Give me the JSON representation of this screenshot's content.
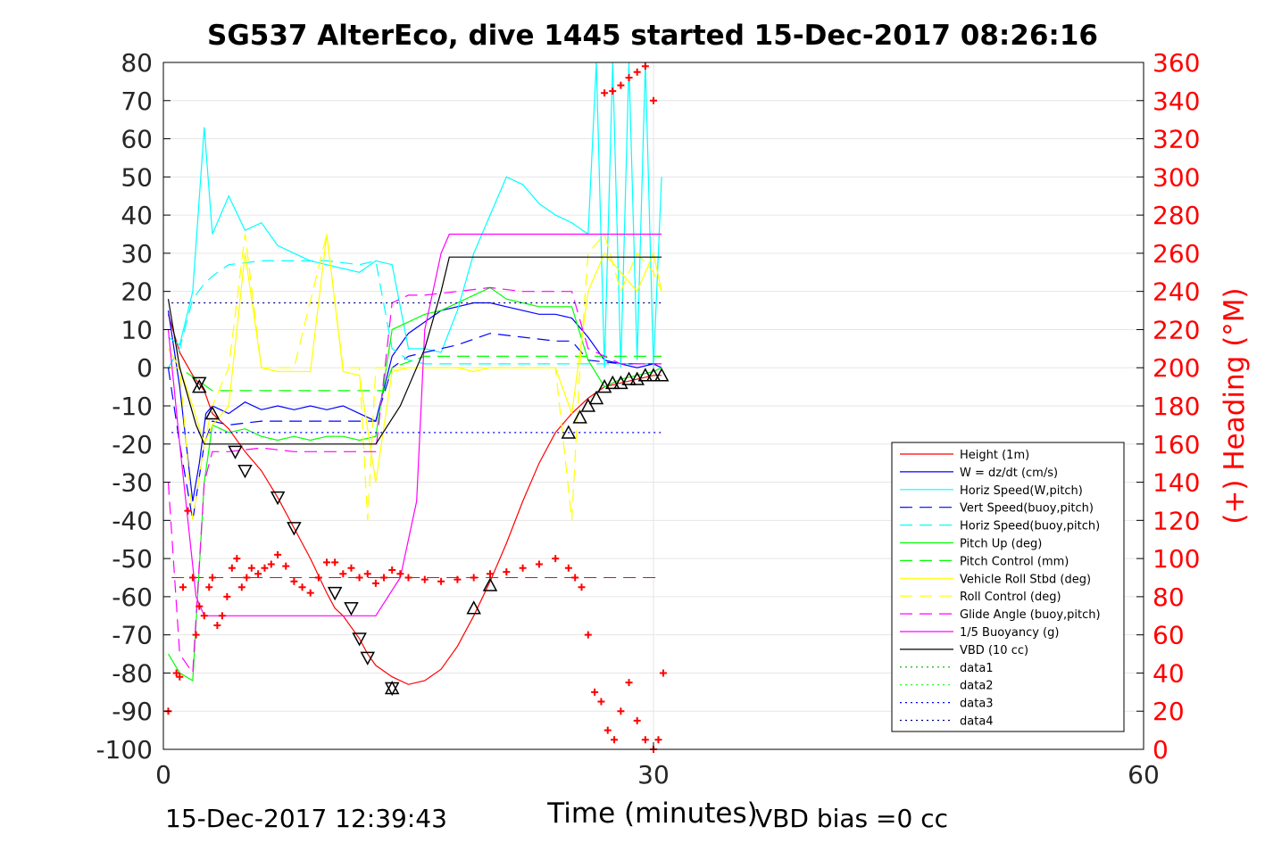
{
  "chart_data": {
    "type": "line",
    "title": "SG537 AlterEco, dive 1445 started 15-Dec-2017 08:26:16",
    "xlabel": "Time (minutes)",
    "ylabel": "",
    "y2label": "(+) Heading (°M)",
    "xlim": [
      0,
      60
    ],
    "ylim": [
      -100,
      80
    ],
    "y2lim": [
      0,
      360
    ],
    "x_ticks": [
      "0",
      "30",
      "60"
    ],
    "y_ticks": [
      "80",
      "70",
      "60",
      "50",
      "40",
      "30",
      "20",
      "10",
      "0",
      "-10",
      "-20",
      "-30",
      "-40",
      "-50",
      "-60",
      "-70",
      "-80",
      "-90",
      "-100"
    ],
    "y2_ticks": [
      "360",
      "340",
      "320",
      "300",
      "280",
      "260",
      "240",
      "220",
      "200",
      "180",
      "160",
      "140",
      "120",
      "100",
      "80",
      "60",
      "40",
      "20",
      "0"
    ],
    "grid": true,
    "legend_position": "lower-right",
    "footer_left": "15-Dec-2017 12:39:43",
    "footer_right": "VBD bias =0 cc",
    "colors": {
      "red": "#ff0000",
      "blue": "#0000ff",
      "cyan": "#00ffff",
      "green": "#00ff00",
      "yellow": "#ffff00",
      "magenta": "#ff00ff",
      "black": "#000000",
      "darkblue": "#000080",
      "darkgreen": "#00aa00"
    },
    "series": [
      {
        "name": "Height (1m)",
        "color": "#ff0000",
        "style": "solid",
        "x": [
          0.3,
          1.0,
          1.8,
          2.5,
          3.0,
          4.0,
          5.0,
          6.0,
          7.0,
          8.0,
          9.0,
          10.0,
          10.5,
          11.0,
          12.0,
          12.5,
          13.0,
          14.0,
          15.0,
          16.0,
          17.0,
          18.0,
          19.0,
          20.0,
          21.0,
          22.0,
          23.0,
          24.0,
          25.0,
          26.0,
          27.0,
          28.0,
          29.0,
          30.0,
          30.5
        ],
        "y": [
          14,
          4,
          -2,
          -6,
          -12,
          -16,
          -22,
          -27,
          -34,
          -42,
          -50,
          -59,
          -63,
          -65,
          -71,
          -75,
          -78,
          -81,
          -83,
          -82,
          -79,
          -73,
          -65,
          -56,
          -46,
          -35,
          -25,
          -17,
          -12,
          -8,
          -5,
          -4,
          -3,
          -2,
          -2
        ]
      },
      {
        "name": "W = dz/dt (cm/s)",
        "color": "#0000ff",
        "style": "solid",
        "x": [
          0.3,
          1.0,
          1.8,
          2.2,
          2.6,
          3.0,
          4.0,
          5.0,
          6.0,
          7.0,
          8.0,
          9.0,
          10.0,
          11.0,
          12.0,
          13.0,
          14.0,
          15.0,
          16.0,
          17.0,
          18.0,
          19.0,
          20.0,
          21.0,
          22.0,
          23.0,
          24.0,
          25.0,
          26.0,
          27.0,
          28.0,
          29.0,
          30.0,
          30.5
        ],
        "y": [
          15,
          -5,
          -35,
          -25,
          -12,
          -10,
          -12,
          -9,
          -11,
          -10,
          -11,
          -10,
          -11,
          -10,
          -12,
          -14,
          3,
          9,
          12,
          15,
          16,
          17,
          17,
          16,
          15,
          14,
          14,
          13,
          8,
          2,
          1,
          0,
          1,
          0
        ]
      },
      {
        "name": "Horiz Speed(W,pitch)",
        "color": "#00ffff",
        "style": "solid",
        "x": [
          0.3,
          1.0,
          1.8,
          2.5,
          3.0,
          4.0,
          5.0,
          6.0,
          7.0,
          8.0,
          9.0,
          10.0,
          11.0,
          12.0,
          13.0,
          14.0,
          15.0,
          16.0,
          17.0,
          18.0,
          19.0,
          20.0,
          21.0,
          22.0,
          23.0,
          24.0,
          25.0,
          26.0,
          26.5,
          27.0,
          27.5,
          28.0,
          28.5,
          29.0,
          29.5,
          30.0,
          30.5
        ],
        "y": [
          8,
          6,
          20,
          63,
          35,
          45,
          36,
          38,
          32,
          30,
          28,
          27,
          26,
          25,
          28,
          27,
          5,
          5,
          4,
          15,
          30,
          40,
          50,
          48,
          43,
          40,
          38,
          35,
          80,
          0,
          80,
          0,
          80,
          2,
          80,
          0,
          50
        ]
      },
      {
        "name": "Vert Speed(buoy,pitch)",
        "color": "#0000ff",
        "style": "dash",
        "x": [
          0.3,
          1.0,
          1.8,
          2.5,
          3.0,
          4.0,
          6.0,
          8.0,
          10.0,
          12.0,
          13.0,
          14.0,
          15.0,
          16.0,
          18.0,
          20.0,
          22.0,
          24.0,
          25.0,
          26.0,
          28.0,
          30.0,
          30.5
        ],
        "y": [
          0,
          -20,
          -40,
          -20,
          -14,
          -15,
          -14,
          -14,
          -14,
          -14,
          -14,
          0,
          3,
          4,
          6,
          9,
          8,
          7,
          7,
          2,
          1,
          1,
          1
        ]
      },
      {
        "name": "Horiz Speed(buoy,pitch)",
        "color": "#00ffff",
        "style": "dash",
        "x": [
          0.3,
          1.0,
          1.8,
          2.5,
          3.0,
          4.0,
          6.0,
          8.0,
          10.0,
          12.0,
          13.0,
          14.0,
          15.0,
          16.0,
          18.0,
          20.0,
          22.0,
          24.0,
          25.0,
          26.0,
          28.0,
          30.0,
          30.5
        ],
        "y": [
          0,
          5,
          18,
          22,
          24,
          27,
          28,
          28,
          28,
          27,
          28,
          5,
          2,
          1,
          1,
          1,
          1,
          1,
          1,
          1,
          1,
          1,
          1
        ]
      },
      {
        "name": "Pitch Up (deg)",
        "color": "#00ff00",
        "style": "solid",
        "x": [
          0.3,
          1.0,
          1.8,
          2.5,
          3.0,
          4.0,
          5.0,
          6.0,
          7.0,
          8.0,
          9.0,
          10.0,
          11.0,
          12.0,
          13.0,
          14.0,
          15.0,
          16.0,
          17.0,
          18.0,
          19.0,
          20.0,
          21.0,
          22.0,
          23.0,
          24.0,
          25.0,
          26.0,
          27.0,
          28.0,
          29.0,
          30.0,
          30.5
        ],
        "y": [
          -75,
          -80,
          -82,
          -30,
          -15,
          -17,
          -16,
          -18,
          -19,
          -18,
          -19,
          -18,
          -18,
          -19,
          -18,
          10,
          12,
          14,
          15,
          17,
          19,
          21,
          18,
          17,
          16,
          16,
          16,
          2,
          -5,
          -3,
          -2,
          -1,
          0
        ]
      },
      {
        "name": "Pitch Control (mm)",
        "color": "#00ff00",
        "style": "dash",
        "x": [
          0.3,
          1.0,
          2.0,
          3.0,
          6.0,
          9.0,
          12.0,
          13.5,
          14.0,
          16.0,
          19.0,
          22.0,
          24.0,
          25.0,
          26.0,
          30.5
        ],
        "y": [
          0,
          0,
          -3,
          -6,
          -6,
          -6,
          -6,
          -6,
          0,
          3,
          3,
          3,
          3,
          3,
          3,
          3
        ]
      },
      {
        "name": "Vehicle Roll Stbd (deg)",
        "color": "#ffff00",
        "style": "solid",
        "x": [
          0.3,
          1.0,
          1.8,
          2.5,
          3.0,
          4.0,
          5.0,
          6.0,
          7.0,
          8.0,
          9.0,
          10.0,
          11.0,
          12.0,
          13.0,
          14.0,
          15.0,
          16.0,
          17.0,
          18.0,
          19.0,
          20.0,
          21.0,
          22.0,
          23.0,
          24.0,
          25.0,
          26.0,
          27.0,
          28.0,
          29.0,
          30.0,
          30.5
        ],
        "y": [
          5,
          0,
          -10,
          -20,
          -15,
          -10,
          30,
          0,
          -1,
          -1,
          -1,
          35,
          -1,
          -2,
          -30,
          -1,
          0,
          0,
          0,
          0,
          -1,
          0,
          0,
          0,
          0,
          0,
          -12,
          20,
          30,
          25,
          20,
          30,
          20
        ]
      },
      {
        "name": "Roll Control (deg)",
        "color": "#ffff00",
        "style": "dash",
        "x": [
          0.3,
          1.0,
          1.8,
          2.5,
          3.0,
          4.0,
          5.0,
          6.0,
          8.0,
          10.0,
          11.0,
          12.0,
          12.5,
          13.0,
          14.0,
          16.0,
          20.0,
          24.0,
          25.0,
          25.5,
          26.0,
          27.0,
          28.0,
          29.0,
          30.0,
          30.5
        ],
        "y": [
          0,
          0,
          -40,
          -20,
          -10,
          0,
          35,
          0,
          0,
          35,
          0,
          0,
          -40,
          0,
          0,
          0,
          0,
          0,
          -40,
          0,
          30,
          35,
          20,
          30,
          25,
          20
        ]
      },
      {
        "name": "Glide Angle (buoy,pitch)",
        "color": "#ff00ff",
        "style": "dash",
        "x": [
          0.3,
          1.0,
          1.8,
          2.5,
          3.0,
          4.0,
          6.0,
          8.0,
          10.0,
          12.0,
          13.0,
          14.0,
          15.0,
          16.0,
          18.0,
          20.0,
          22.0,
          24.0,
          25.0,
          26.0,
          28.0,
          30.0,
          30.5
        ],
        "y": [
          -30,
          -75,
          -80,
          -30,
          -22,
          -22,
          -21,
          -22,
          -22,
          -22,
          -22,
          17,
          19,
          19,
          20,
          21,
          20,
          20,
          20,
          5,
          1,
          1,
          1
        ]
      },
      {
        "name": "1/5 Buoyancy (g)",
        "color": "#ff00ff",
        "style": "solid",
        "x": [
          0.3,
          1.0,
          2.0,
          2.5,
          5.0,
          10.0,
          13.0,
          14.5,
          15.5,
          16.0,
          17.0,
          17.5,
          20.0,
          25.0,
          30.0,
          30.5
        ],
        "y": [
          10,
          -20,
          -60,
          -65,
          -65,
          -65,
          -65,
          -55,
          -35,
          10,
          30,
          35,
          35,
          35,
          35,
          35
        ]
      },
      {
        "name": "VBD (10 cc)",
        "color": "#000000",
        "style": "solid",
        "x": [
          0.3,
          1.0,
          2.0,
          2.5,
          5.0,
          10.0,
          13.0,
          14.5,
          15.5,
          16.0,
          17.0,
          17.5,
          20.0,
          25.0,
          30.0,
          30.5
        ],
        "y": [
          18,
          0,
          -15,
          -20,
          -20,
          -20,
          -20,
          -10,
          0,
          5,
          20,
          29,
          29,
          29,
          29,
          29
        ]
      },
      {
        "name": "data1",
        "color": "#00aa00",
        "style": "dot",
        "x": [],
        "y": []
      },
      {
        "name": "data2",
        "color": "#00ff00",
        "style": "dot",
        "x": [],
        "y": []
      },
      {
        "name": "data3",
        "color": "#0000ff",
        "style": "dot",
        "x": [
          0.5,
          30.5
        ],
        "y": [
          -17,
          -17
        ]
      },
      {
        "name": "data4",
        "color": "#000080",
        "style": "dot",
        "x": [
          0.5,
          30.5
        ],
        "y": [
          17,
          17
        ]
      }
    ],
    "heading_series": {
      "axis": "right",
      "marker": "+",
      "color": "#ff0000",
      "x": [
        0.3,
        0.8,
        1.0,
        1.2,
        1.5,
        1.8,
        2.0,
        2.2,
        2.5,
        2.8,
        3.0,
        3.3,
        3.6,
        3.9,
        4.2,
        4.5,
        4.8,
        5.1,
        5.4,
        5.8,
        6.2,
        6.6,
        7.0,
        7.5,
        8.0,
        8.5,
        9.0,
        9.5,
        10.0,
        10.5,
        11.0,
        11.5,
        12.0,
        12.5,
        13.0,
        13.5,
        14.0,
        14.5,
        15.0,
        16.0,
        17.0,
        18.0,
        19.0,
        20.0,
        21.0,
        22.0,
        23.0,
        24.0,
        24.8,
        25.2,
        25.6,
        26.0,
        26.4,
        26.8,
        27.2,
        27.6,
        28.0,
        28.5,
        29.0,
        29.5,
        30.0,
        30.3,
        30.6
      ],
      "y": [
        20,
        40,
        38,
        85,
        125,
        90,
        60,
        75,
        70,
        85,
        90,
        65,
        70,
        80,
        95,
        100,
        85,
        90,
        95,
        92,
        95,
        97,
        102,
        96,
        88,
        85,
        82,
        90,
        98,
        98,
        92,
        95,
        90,
        92,
        87,
        90,
        94,
        92,
        90,
        89,
        88,
        89,
        90,
        92,
        93,
        95,
        97,
        100,
        95,
        90,
        85,
        60,
        30,
        25,
        10,
        5,
        20,
        35,
        15,
        5,
        0,
        5,
        40
      ]
    },
    "heading_series_top": {
      "axis": "right",
      "marker": "+",
      "color": "#ff0000",
      "x": [
        27.0,
        27.5,
        28.0,
        28.5,
        29.0,
        29.5,
        30.0
      ],
      "y": [
        344,
        345,
        348,
        352,
        355,
        358,
        340
      ]
    },
    "dashed_reference": {
      "axis": "right",
      "color": "#ff0000",
      "y": 90
    },
    "markers_down": {
      "x": [
        2.2,
        4.4,
        5.0,
        7.0,
        8.0,
        10.5,
        11.5,
        12.0,
        12.5,
        14.0
      ],
      "y": [
        -4,
        -22,
        -27,
        -34,
        -42,
        -59,
        -63,
        -71,
        -76,
        -84
      ]
    },
    "markers_up": {
      "x": [
        2.2,
        3.0,
        14.0,
        19.0,
        20.0,
        24.8,
        25.5,
        26.0,
        26.5,
        27.0,
        27.5,
        28.0,
        28.5,
        29.0,
        29.5,
        30.0,
        30.5
      ],
      "y": [
        -5,
        -12,
        -84,
        -63,
        -57,
        -17,
        -13,
        -10,
        -8,
        -5,
        -4,
        -4,
        -3,
        -3,
        -2,
        -2,
        -2
      ]
    }
  }
}
